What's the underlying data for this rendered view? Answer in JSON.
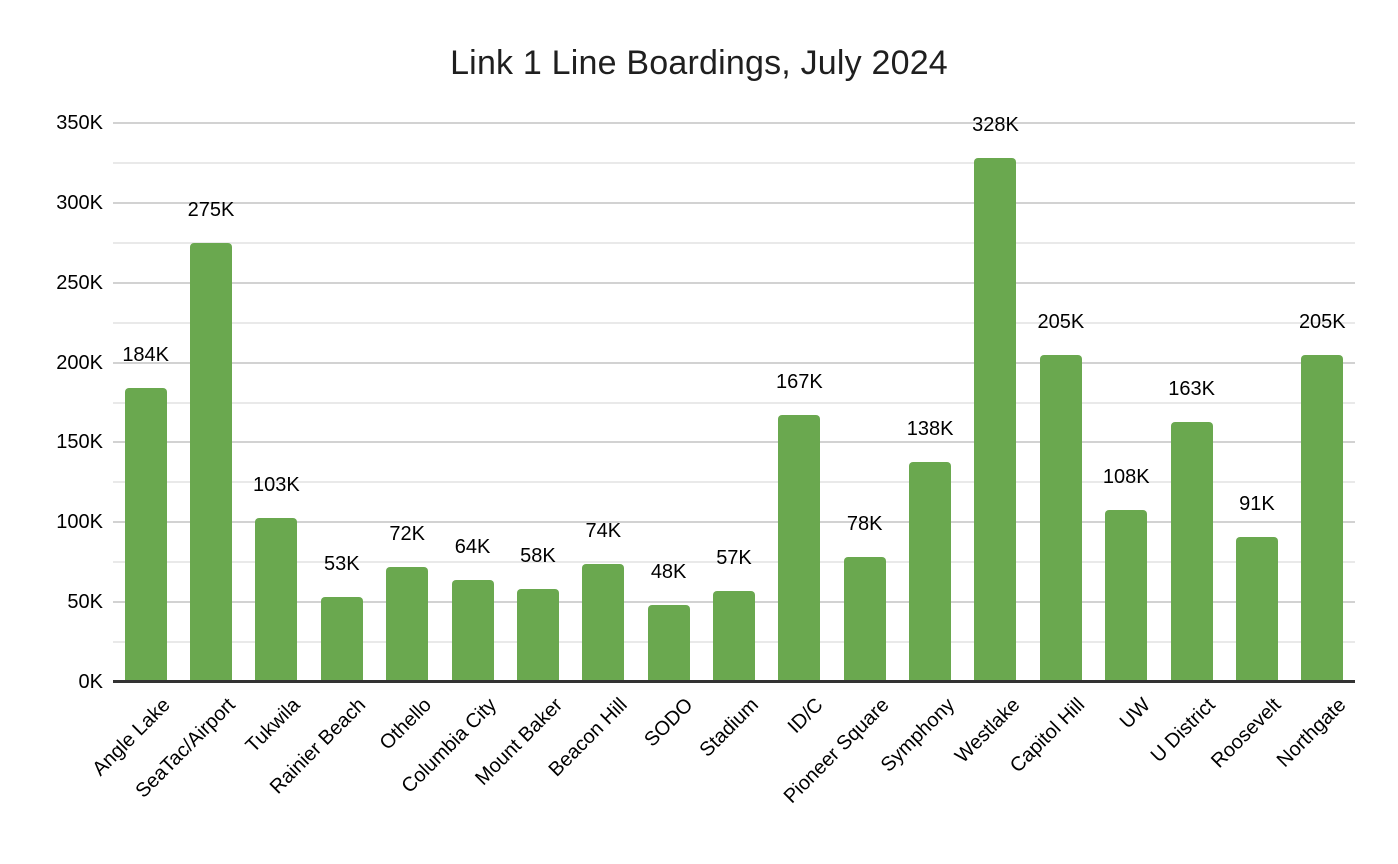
{
  "chart_data": {
    "type": "bar",
    "title": "Link 1 Line Boardings, July 2024",
    "xlabel": "",
    "ylabel": "",
    "categories": [
      "Angle Lake",
      "SeaTac/Airport",
      "Tukwila",
      "Rainier Beach",
      "Othello",
      "Columbia City",
      "Mount Baker",
      "Beacon Hill",
      "SODO",
      "Stadium",
      "ID/C",
      "Pioneer Square",
      "Symphony",
      "Westlake",
      "Capitol Hill",
      "UW",
      "U District",
      "Roosevelt",
      "Northgate"
    ],
    "values": [
      184000,
      275000,
      103000,
      53000,
      72000,
      64000,
      58000,
      74000,
      48000,
      57000,
      167000,
      78000,
      138000,
      328000,
      205000,
      108000,
      163000,
      91000,
      205000
    ],
    "value_labels": [
      "184K",
      "275K",
      "103K",
      "53K",
      "72K",
      "64K",
      "58K",
      "74K",
      "48K",
      "57K",
      "167K",
      "78K",
      "138K",
      "328K",
      "205K",
      "108K",
      "163K",
      "91K",
      "205K"
    ],
    "ylim": [
      0,
      350000
    ],
    "ytick_step_major": 50000,
    "ytick_step_minor": 25000,
    "ytick_labels": [
      "0K",
      "50K",
      "100K",
      "150K",
      "200K",
      "250K",
      "300K",
      "350K"
    ],
    "grid": true,
    "legend": false,
    "colors": {
      "bar": "#6aa84f",
      "axis_line": "#333333",
      "grid_major": "#d2d2d2",
      "grid_minor": "#e9e9e9",
      "label_text": "#000000",
      "title_text": "#1f1f1f",
      "background": "#ffffff"
    }
  }
}
